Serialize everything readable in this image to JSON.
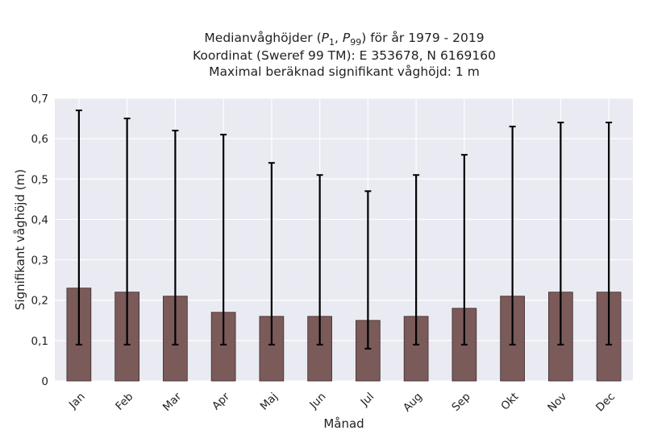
{
  "chart_data": {
    "type": "bar",
    "title_lines": [
      "Medianvåghöjder (P1, P99) för år 1979 - 2019",
      "Koordinat (Sweref 99 TM): E 353678, N 6169160",
      "Maximal beräknad signifikant våghöjd: 1 m"
    ],
    "xlabel": "Månad",
    "ylabel": "Signifikant våghöjd (m)",
    "categories": [
      "Jan",
      "Feb",
      "Mar",
      "Apr",
      "Maj",
      "Jun",
      "Jul",
      "Aug",
      "Sep",
      "Okt",
      "Nov",
      "Dec"
    ],
    "series": [
      {
        "values": [
          0.23,
          0.22,
          0.21,
          0.17,
          0.16,
          0.16,
          0.15,
          0.16,
          0.18,
          0.21,
          0.22,
          0.22
        ],
        "p1": [
          0.09,
          0.09,
          0.09,
          0.09,
          0.09,
          0.09,
          0.08,
          0.09,
          0.09,
          0.09,
          0.09,
          0.09
        ],
        "p99": [
          0.67,
          0.65,
          0.62,
          0.61,
          0.54,
          0.51,
          0.47,
          0.51,
          0.56,
          0.63,
          0.64,
          0.64
        ]
      }
    ],
    "ylim": [
      0,
      0.7
    ],
    "yticks": [
      0,
      0.1,
      0.2,
      0.3,
      0.4,
      0.5,
      0.6,
      0.7
    ],
    "ytick_labels": [
      "0",
      "0,1",
      "0,2",
      "0,3",
      "0,4",
      "0,5",
      "0,6",
      "0,7"
    ],
    "grid": true,
    "colors": {
      "bar": "#7b5a5a",
      "bar_edge": "#3d2c2c",
      "error": "#000000",
      "plot_bg": "#eaeaf2",
      "grid": "#ffffff"
    }
  }
}
